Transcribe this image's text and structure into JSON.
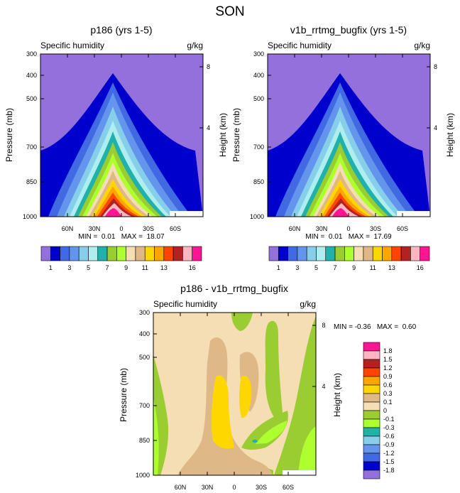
{
  "figure_title": "SON",
  "chart_data": [
    {
      "type": "heatmap",
      "title": "p186 (yrs 1-5)",
      "left_label": "Specific humidity",
      "right_label": "g/kg",
      "ylabel": "Pressure (mb)",
      "ylabel_right": "Height (km)",
      "y_ticks": [
        "300",
        "400",
        "500",
        "700",
        "850",
        "1000"
      ],
      "y_right_ticks": [
        "8",
        "4"
      ],
      "x_ticks": [
        "60N",
        "30N",
        "0",
        "30S",
        "60S"
      ],
      "stats_text": "MIN =  0.01   MAX =  18.07",
      "min": 0.01,
      "max": 18.07,
      "colorbar_labels": [
        "1",
        "3",
        "5",
        "7",
        "9",
        "11",
        "13",
        "16"
      ],
      "colorbar_levels": [
        0.5,
        1,
        2,
        3,
        4,
        5,
        6,
        7,
        8,
        9,
        10,
        11,
        12,
        13,
        14,
        16
      ]
    },
    {
      "type": "heatmap",
      "title": "v1b_rrtmg_bugfix (yrs 1-5)",
      "left_label": "Specific humidity",
      "right_label": "g/kg",
      "ylabel": "Pressure (mb)",
      "ylabel_right": "Height (km)",
      "y_ticks": [
        "300",
        "400",
        "500",
        "700",
        "850",
        "1000"
      ],
      "y_right_ticks": [
        "8",
        "4"
      ],
      "x_ticks": [
        "60N",
        "30N",
        "0",
        "30S",
        "60S"
      ],
      "stats_text": "MIN =  0.01   MAX =  17.69",
      "min": 0.01,
      "max": 17.69,
      "colorbar_labels": [
        "1",
        "3",
        "5",
        "7",
        "9",
        "11",
        "13",
        "16"
      ],
      "colorbar_levels": [
        0.5,
        1,
        2,
        3,
        4,
        5,
        6,
        7,
        8,
        9,
        10,
        11,
        12,
        13,
        14,
        16
      ]
    },
    {
      "type": "heatmap",
      "title": "p186 - v1b_rrtmg_bugfix",
      "left_label": "Specific humidity",
      "right_label": "g/kg",
      "ylabel": "Pressure (mb)",
      "ylabel_right": "Height (km)",
      "y_ticks": [
        "300",
        "400",
        "500",
        "700",
        "850",
        "1000"
      ],
      "y_right_ticks": [
        "8",
        "4"
      ],
      "x_ticks": [
        "60N",
        "30N",
        "0",
        "30S",
        "60S"
      ],
      "stats_text": "MIN = -0.36   MAX =  0.60",
      "min": -0.36,
      "max": 0.6,
      "colorbar_labels": [
        "1.8",
        "1.5",
        "1.2",
        "0.9",
        "0.6",
        "0.3",
        "0.1",
        "0",
        "-0.1",
        "-0.3",
        "-0.6",
        "-0.9",
        "-1.2",
        "-1.5",
        "-1.8"
      ]
    }
  ],
  "colors": {
    "abs_palette": [
      "#9370db",
      "#0000cd",
      "#4169e1",
      "#6495ed",
      "#87ceeb",
      "#afeeee",
      "#20b2aa",
      "#9acd32",
      "#adff2f",
      "#f5deb3",
      "#deb887",
      "#ffd700",
      "#ffa500",
      "#ff4500",
      "#b22222",
      "#ffb6c1",
      "#ff1493"
    ],
    "diff_palette": [
      "#ff1493",
      "#ffb6c1",
      "#b22222",
      "#ff4500",
      "#ffa500",
      "#ffd700",
      "#deb887",
      "#f5deb3",
      "#9acd32",
      "#adff2f",
      "#20b2aa",
      "#87ceeb",
      "#6495ed",
      "#4169e1",
      "#0000cd",
      "#9370db"
    ]
  }
}
